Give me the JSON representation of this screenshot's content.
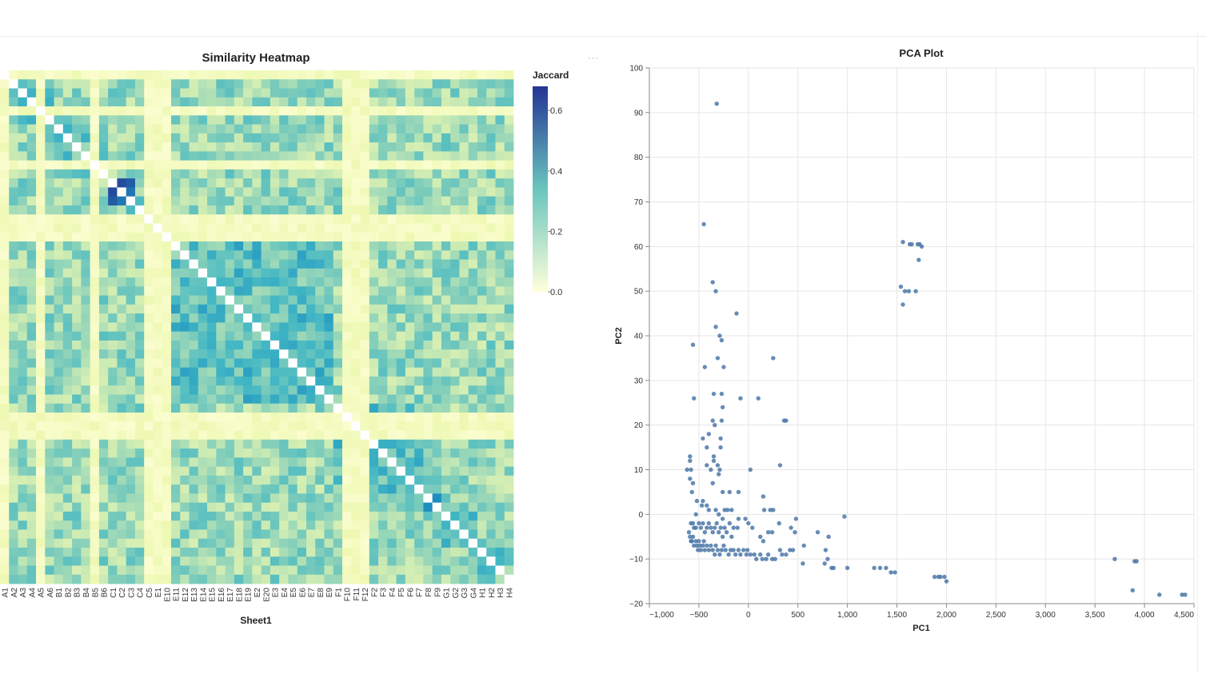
{
  "chart_data": [
    {
      "type": "heatmap",
      "title": "Similarity Heatmap",
      "xlabel": "Sheet1",
      "categories": [
        "A1",
        "A2",
        "A3",
        "A4",
        "A5",
        "A6",
        "B1",
        "B2",
        "B3",
        "B4",
        "B5",
        "B6",
        "C1",
        "C2",
        "C3",
        "C4",
        "C5",
        "E1",
        "E10",
        "E11",
        "E12",
        "E13",
        "E14",
        "E15",
        "E16",
        "E17",
        "E18",
        "E19",
        "E2",
        "E20",
        "E3",
        "E4",
        "E5",
        "E6",
        "E7",
        "E8",
        "E9",
        "F1",
        "F10",
        "F11",
        "F12",
        "F2",
        "F3",
        "F4",
        "F5",
        "F6",
        "F7",
        "F8",
        "F9",
        "G1",
        "G2",
        "G3",
        "G4",
        "H1",
        "H2",
        "H3",
        "H4"
      ],
      "legend": {
        "title": "Jaccard",
        "domain": [
          0,
          0.68
        ],
        "ticks": [
          0.0,
          0.2,
          0.4,
          0.6
        ],
        "tick_labels": [
          "0.0",
          "0.2",
          "0.4",
          "0.6"
        ]
      },
      "colors": {
        "low": "#edf8b1",
        "mid": "#41b6c4",
        "high": "#253494"
      },
      "diagonal_color": "#ffffff",
      "light_rows": [
        "A1",
        "A5",
        "B5",
        "C5",
        "E1",
        "E10",
        "F10",
        "F11",
        "F12"
      ],
      "dark_blocks": [
        [
          "C1",
          "C3"
        ],
        [
          "F1",
          "F1"
        ],
        [
          "F8",
          "F9"
        ]
      ],
      "value_range": [
        0,
        0.68
      ]
    },
    {
      "type": "scatter",
      "title": "PCA Plot",
      "xlabel": "PC1",
      "ylabel": "PC2",
      "xlim": [
        -1000,
        4500
      ],
      "ylim": [
        -20,
        100
      ],
      "xticks": [
        -1000,
        -500,
        0,
        500,
        1000,
        1500,
        2000,
        2500,
        3000,
        3500,
        4000,
        4500
      ],
      "xtick_labels": [
        "−1,000",
        "−500",
        "0",
        "500",
        "1,000",
        "1,500",
        "2,000",
        "2,500",
        "3,000",
        "3,500",
        "4,000",
        "4,500"
      ],
      "yticks": [
        -20,
        -10,
        0,
        10,
        20,
        30,
        40,
        50,
        60,
        70,
        80,
        90,
        100
      ],
      "ytick_labels": [
        "−20",
        "−10",
        "0",
        "10",
        "20",
        "30",
        "40",
        "50",
        "60",
        "70",
        "80",
        "90",
        "100"
      ],
      "grid": true,
      "point_color": "#4c78a8",
      "points": [
        [
          -320,
          92
        ],
        [
          -450,
          65
        ],
        [
          -360,
          52
        ],
        [
          -330,
          50
        ],
        [
          -560,
          38
        ],
        [
          -120,
          45
        ],
        [
          -330,
          42
        ],
        [
          -290,
          40
        ],
        [
          -270,
          39
        ],
        [
          -440,
          33
        ],
        [
          -310,
          35
        ],
        [
          -250,
          33
        ],
        [
          250,
          35
        ],
        [
          -550,
          26
        ],
        [
          -350,
          27
        ],
        [
          -270,
          27
        ],
        [
          -260,
          24
        ],
        [
          -80,
          26
        ],
        [
          100,
          26
        ],
        [
          360,
          21
        ],
        [
          380,
          21
        ],
        [
          -360,
          21
        ],
        [
          -270,
          21
        ],
        [
          -340,
          20
        ],
        [
          -400,
          18
        ],
        [
          -460,
          17
        ],
        [
          -280,
          17
        ],
        [
          -420,
          15
        ],
        [
          -280,
          15
        ],
        [
          -590,
          13
        ],
        [
          -590,
          12
        ],
        [
          -350,
          13
        ],
        [
          -350,
          12
        ],
        [
          -420,
          11
        ],
        [
          -310,
          11
        ],
        [
          -290,
          10
        ],
        [
          -580,
          10
        ],
        [
          -380,
          10
        ],
        [
          -300,
          9
        ],
        [
          20,
          10
        ],
        [
          320,
          11
        ],
        [
          -560,
          7
        ],
        [
          -360,
          7
        ],
        [
          -620,
          10
        ],
        [
          -590,
          8
        ],
        [
          -570,
          5
        ],
        [
          -260,
          5
        ],
        [
          -190,
          5
        ],
        [
          -100,
          5
        ],
        [
          -520,
          3
        ],
        [
          -460,
          3
        ],
        [
          -470,
          2
        ],
        [
          -420,
          2
        ],
        [
          150,
          4
        ],
        [
          -400,
          1
        ],
        [
          -330,
          1
        ],
        [
          -240,
          1
        ],
        [
          -210,
          1
        ],
        [
          -170,
          1
        ],
        [
          160,
          1
        ],
        [
          220,
          1
        ],
        [
          250,
          1
        ],
        [
          -530,
          0
        ],
        [
          -300,
          0
        ],
        [
          -260,
          -1
        ],
        [
          -100,
          -1
        ],
        [
          -30,
          -1
        ],
        [
          480,
          -1
        ],
        [
          970,
          -0.5
        ],
        [
          -580,
          -2
        ],
        [
          -560,
          -2
        ],
        [
          -550,
          -3
        ],
        [
          -530,
          -3
        ],
        [
          -500,
          -2
        ],
        [
          -480,
          -3
        ],
        [
          -460,
          -2
        ],
        [
          -440,
          -4
        ],
        [
          -420,
          -3
        ],
        [
          -400,
          -2
        ],
        [
          -380,
          -3
        ],
        [
          -360,
          -4
        ],
        [
          -340,
          -3
        ],
        [
          -320,
          -2
        ],
        [
          -300,
          -4
        ],
        [
          -280,
          -3
        ],
        [
          -260,
          -5
        ],
        [
          -240,
          -3
        ],
        [
          -220,
          -4
        ],
        [
          -190,
          -2
        ],
        [
          -170,
          -5
        ],
        [
          -150,
          -3
        ],
        [
          -110,
          -3
        ],
        [
          0,
          -2
        ],
        [
          40,
          -3
        ],
        [
          120,
          -5
        ],
        [
          150,
          -6
        ],
        [
          200,
          -4
        ],
        [
          240,
          -4
        ],
        [
          310,
          -2
        ],
        [
          430,
          -3
        ],
        [
          470,
          -4
        ],
        [
          700,
          -4
        ],
        [
          810,
          -5
        ],
        [
          -600,
          -4
        ],
        [
          -590,
          -5
        ],
        [
          -580,
          -6
        ],
        [
          -570,
          -6
        ],
        [
          -560,
          -5
        ],
        [
          -550,
          -7
        ],
        [
          -530,
          -6
        ],
        [
          -520,
          -7
        ],
        [
          -510,
          -8
        ],
        [
          -500,
          -6
        ],
        [
          -490,
          -7
        ],
        [
          -480,
          -8
        ],
        [
          -460,
          -7
        ],
        [
          -450,
          -6
        ],
        [
          -440,
          -8
        ],
        [
          -420,
          -7
        ],
        [
          -400,
          -8
        ],
        [
          -380,
          -7
        ],
        [
          -360,
          -8
        ],
        [
          -340,
          -9
        ],
        [
          -330,
          -7
        ],
        [
          -310,
          -8
        ],
        [
          -290,
          -9
        ],
        [
          -270,
          -8
        ],
        [
          -250,
          -7
        ],
        [
          -230,
          -8
        ],
        [
          -200,
          -9
        ],
        [
          -180,
          -8
        ],
        [
          -150,
          -8
        ],
        [
          -130,
          -9
        ],
        [
          -100,
          -8
        ],
        [
          -80,
          -9
        ],
        [
          -50,
          -8
        ],
        [
          -20,
          -9
        ],
        [
          -10,
          -8
        ],
        [
          20,
          -9
        ],
        [
          60,
          -9
        ],
        [
          80,
          -10
        ],
        [
          120,
          -9
        ],
        [
          140,
          -10
        ],
        [
          180,
          -10
        ],
        [
          200,
          -9
        ],
        [
          240,
          -10
        ],
        [
          270,
          -10
        ],
        [
          320,
          -8
        ],
        [
          340,
          -9
        ],
        [
          380,
          -9
        ],
        [
          420,
          -8
        ],
        [
          450,
          -8
        ],
        [
          550,
          -11
        ],
        [
          560,
          -7
        ],
        [
          780,
          -8
        ],
        [
          800,
          -10
        ],
        [
          770,
          -11
        ],
        [
          860,
          -12
        ],
        [
          840,
          -12
        ],
        [
          1000,
          -12
        ],
        [
          1270,
          -12
        ],
        [
          1330,
          -12
        ],
        [
          1390,
          -12
        ],
        [
          1440,
          -13
        ],
        [
          1480,
          -13
        ],
        [
          1560,
          61
        ],
        [
          1630,
          60.5
        ],
        [
          1650,
          60.5
        ],
        [
          1710,
          60.5
        ],
        [
          1730,
          60.5
        ],
        [
          1750,
          60
        ],
        [
          1720,
          57
        ],
        [
          1540,
          51
        ],
        [
          1580,
          50
        ],
        [
          1620,
          50
        ],
        [
          1690,
          50
        ],
        [
          1560,
          47
        ],
        [
          1880,
          -14
        ],
        [
          1920,
          -14
        ],
        [
          1940,
          -14
        ],
        [
          1980,
          -14
        ],
        [
          2000,
          -15
        ],
        [
          3700,
          -10
        ],
        [
          3900,
          -10.5
        ],
        [
          3920,
          -10.5
        ],
        [
          3880,
          -17
        ],
        [
          4150,
          -18
        ],
        [
          4380,
          -18
        ],
        [
          4410,
          -18
        ]
      ]
    }
  ]
}
